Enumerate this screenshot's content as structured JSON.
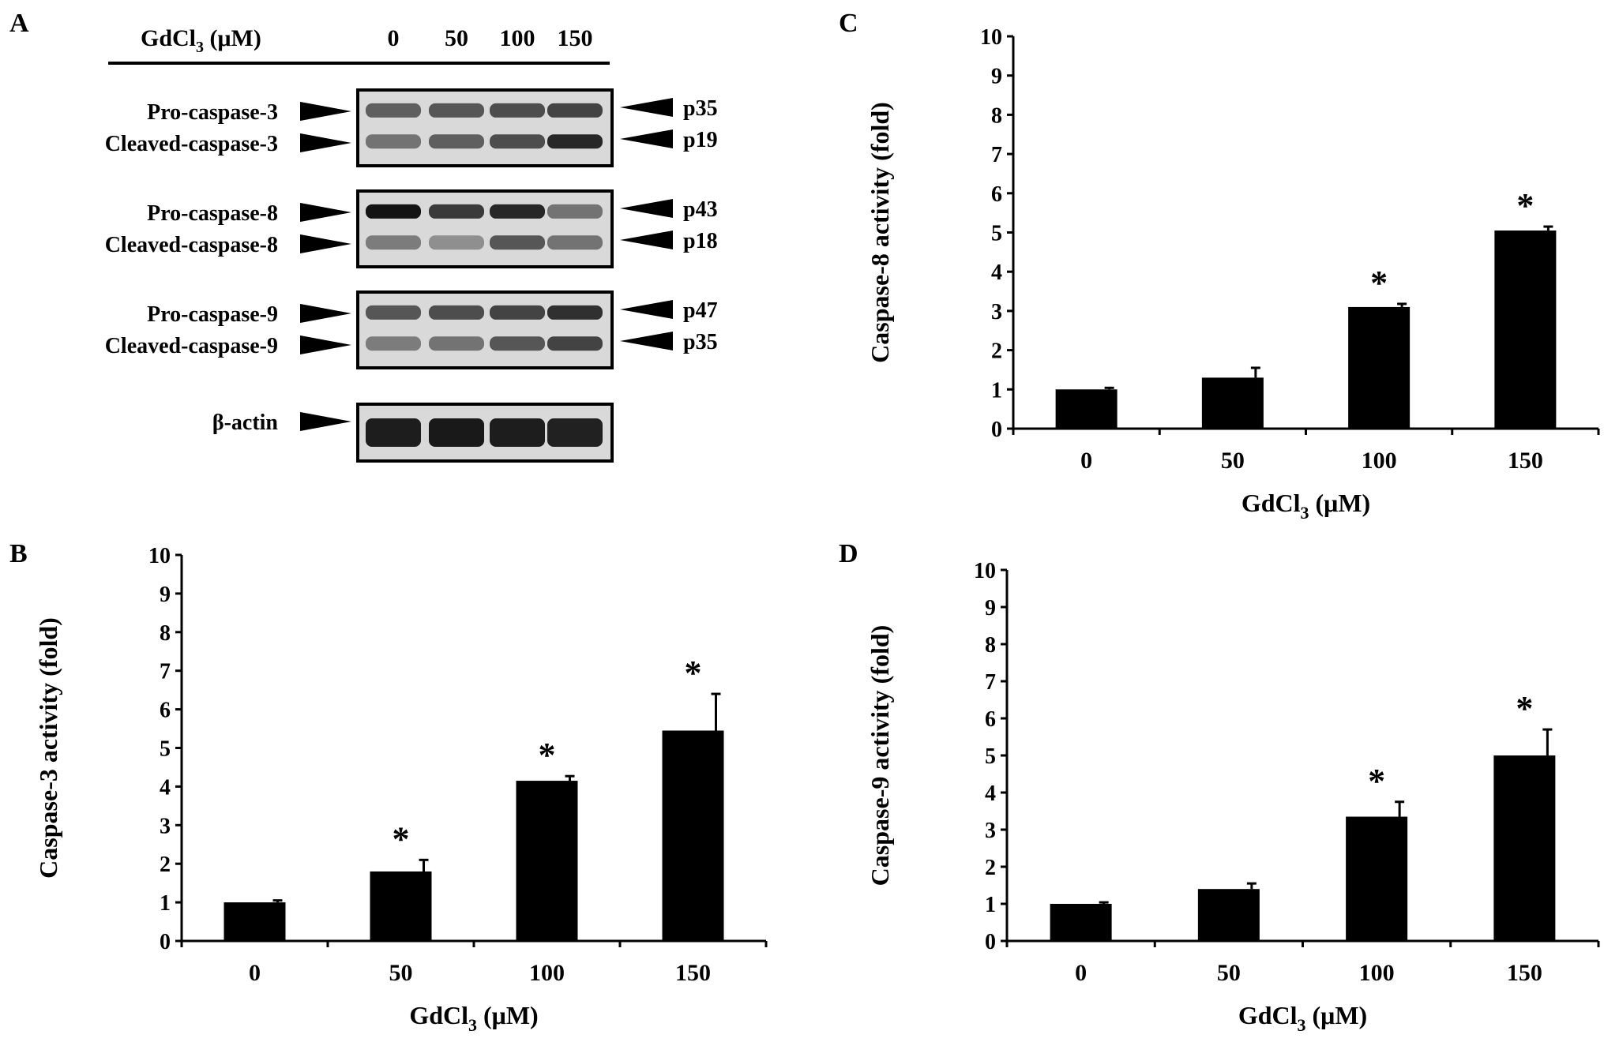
{
  "panel_labels": [
    "A",
    "B",
    "C",
    "D"
  ],
  "western_blot": {
    "header_label": "GdCl",
    "header_sub": "3",
    "header_unit": " (μM)",
    "doses": [
      "0",
      "50",
      "100",
      "150"
    ],
    "blots": [
      {
        "left_labels": [
          "Pro-caspase-3",
          "Cleaved-caspase-3"
        ],
        "right_labels": [
          "p35",
          "p19"
        ],
        "band_intensity": [
          [
            0.55,
            0.6,
            0.65,
            0.7
          ],
          [
            0.45,
            0.55,
            0.65,
            0.85
          ]
        ]
      },
      {
        "left_labels": [
          "Pro-caspase-8",
          "Cleaved-caspase-8"
        ],
        "right_labels": [
          "p43",
          "p18"
        ],
        "band_intensity": [
          [
            0.95,
            0.75,
            0.85,
            0.45
          ],
          [
            0.4,
            0.3,
            0.6,
            0.45
          ]
        ]
      },
      {
        "left_labels": [
          "Pro-caspase-9",
          "Cleaved-caspase-9"
        ],
        "right_labels": [
          "p47",
          "p35"
        ],
        "band_intensity": [
          [
            0.6,
            0.65,
            0.7,
            0.8
          ],
          [
            0.4,
            0.45,
            0.6,
            0.7
          ]
        ]
      },
      {
        "left_labels": [
          "β-actin"
        ],
        "right_labels": [],
        "band_intensity": [
          [
            0.9,
            0.92,
            0.9,
            0.88
          ]
        ]
      }
    ]
  },
  "chart_data": [
    {
      "panel": "B",
      "type": "bar",
      "categories": [
        "0",
        "50",
        "100",
        "150"
      ],
      "values": [
        1.0,
        1.8,
        4.15,
        5.45
      ],
      "errors": [
        0.05,
        0.3,
        0.12,
        0.95
      ],
      "significant": [
        false,
        true,
        true,
        true
      ],
      "sig_marker": "*",
      "ylabel": "Caspase-3 activity (fold)",
      "xlabel": "GdCl",
      "xlabel_sub": "3",
      "xlabel_unit": " (μM)",
      "ylim": [
        0,
        10
      ],
      "yticks": [
        "0",
        "1",
        "2",
        "3",
        "4",
        "5",
        "6",
        "7",
        "8",
        "9",
        "10"
      ],
      "color": "#000000"
    },
    {
      "panel": "C",
      "type": "bar",
      "categories": [
        "0",
        "50",
        "100",
        "150"
      ],
      "values": [
        1.0,
        1.3,
        3.1,
        5.05
      ],
      "errors": [
        0.04,
        0.25,
        0.08,
        0.1
      ],
      "significant": [
        false,
        false,
        true,
        true
      ],
      "sig_marker": "*",
      "ylabel": "Caspase-8 activity (fold)",
      "xlabel": "GdCl",
      "xlabel_sub": "3",
      "xlabel_unit": " (μM)",
      "ylim": [
        0,
        10
      ],
      "yticks": [
        "0",
        "1",
        "2",
        "3",
        "4",
        "5",
        "6",
        "7",
        "8",
        "9",
        "10"
      ],
      "color": "#000000"
    },
    {
      "panel": "D",
      "type": "bar",
      "categories": [
        "0",
        "50",
        "100",
        "150"
      ],
      "values": [
        1.0,
        1.4,
        3.35,
        5.0
      ],
      "errors": [
        0.04,
        0.15,
        0.4,
        0.7
      ],
      "significant": [
        false,
        false,
        true,
        true
      ],
      "sig_marker": "*",
      "ylabel": "Caspase-9 activity (fold)",
      "xlabel": "GdCl",
      "xlabel_sub": "3",
      "xlabel_unit": " (μM)",
      "ylim": [
        0,
        10
      ],
      "yticks": [
        "0",
        "1",
        "2",
        "3",
        "4",
        "5",
        "6",
        "7",
        "8",
        "9",
        "10"
      ],
      "color": "#000000"
    }
  ]
}
